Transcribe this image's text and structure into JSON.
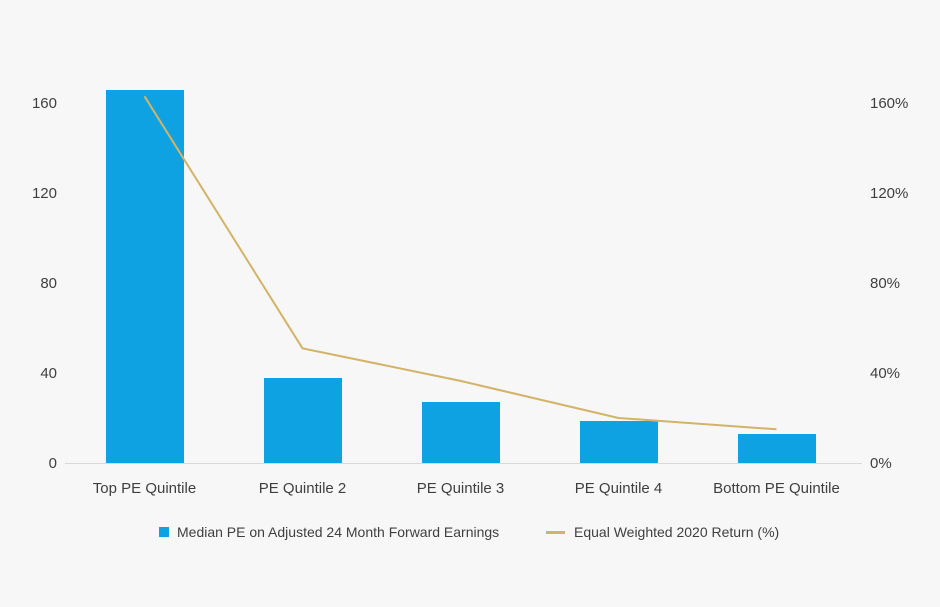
{
  "page": {
    "background_color": "#f7f7f7",
    "text_color": "#3f3f3f",
    "axis_line_color": "#d8d8d8"
  },
  "chart_data": {
    "type": "bar+line",
    "title": "",
    "categories": [
      "Top PE Quintile",
      "PE Quintile 2",
      "PE Quintile 3",
      "PE Quintile 4",
      "Bottom PE Quintile"
    ],
    "series": [
      {
        "name": "Median PE on Adjusted 24 Month Forward Earnings",
        "type": "bar",
        "color": "#0fa2e2",
        "values": [
          166,
          38,
          27,
          18.5,
          13
        ],
        "axis": "left"
      },
      {
        "name": "Equal Weighted 2020 Return (%)",
        "type": "line",
        "color": "#d2b368",
        "values": [
          163,
          51,
          36.5,
          20,
          15
        ],
        "axis": "right"
      }
    ],
    "axes": {
      "left": {
        "tick_labels": [
          "0",
          "40",
          "80",
          "120",
          "160"
        ],
        "tick_values": [
          0,
          40,
          80,
          120,
          160
        ],
        "range": [
          0,
          160
        ]
      },
      "right": {
        "tick_labels": [
          "0%",
          "40%",
          "80%",
          "120%",
          "160%"
        ],
        "tick_values": [
          0,
          40,
          80,
          120,
          160
        ],
        "range": [
          0,
          160
        ]
      }
    },
    "grid": false,
    "legend_position": "bottom"
  },
  "legend": {
    "bar_swatch": "blue-square-swatch",
    "line_swatch": "gold-line-swatch"
  }
}
